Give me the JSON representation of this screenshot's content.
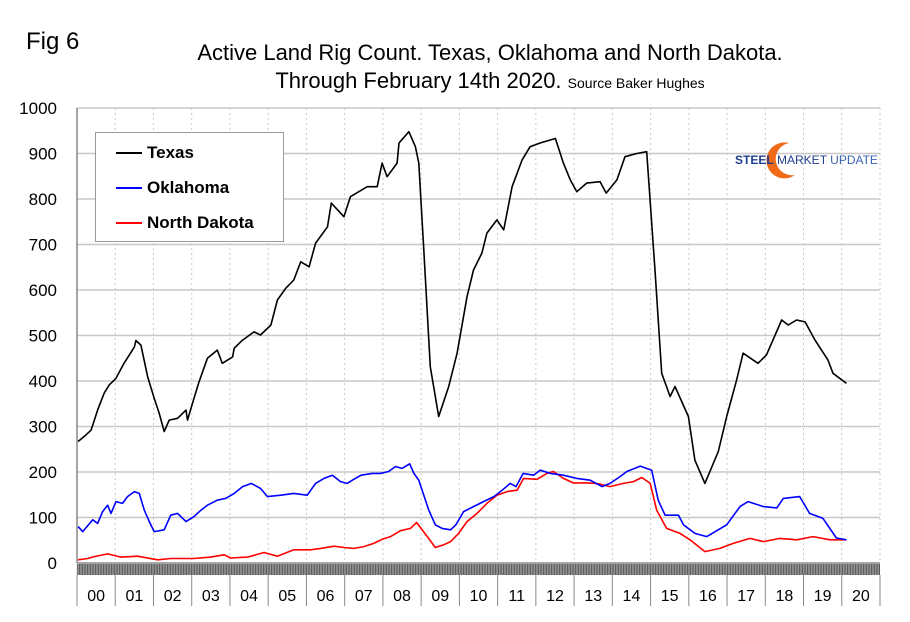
{
  "figure_label": "Fig 6",
  "logo": {
    "word1": "STEEL",
    "word2": "MARKET",
    "word3": "UPDATE",
    "text": "STEEL MARKET UPDATE"
  },
  "chart_data": {
    "type": "line",
    "title": "Active Land Rig Count. Texas, Oklahoma and North Dakota.",
    "subtitle": "Through February 14th  2020.",
    "source": "Source Baker Hughes",
    "xlabel": "",
    "ylabel": "",
    "xlim": [
      2000,
      2021
    ],
    "ylim": [
      0,
      1000
    ],
    "yticks": [
      0,
      100,
      200,
      300,
      400,
      500,
      600,
      700,
      800,
      900,
      1000
    ],
    "ytick_labels": [
      "0",
      "100",
      "200",
      "300",
      "400",
      "500",
      "600",
      "700",
      "800",
      "900",
      "1000"
    ],
    "xtick_labels": [
      "00",
      "01",
      "02",
      "03",
      "04",
      "05",
      "06",
      "07",
      "08",
      "09",
      "10",
      "11",
      "12",
      "13",
      "14",
      "15",
      "16",
      "17",
      "18",
      "19",
      "20"
    ],
    "grid": true,
    "legend_position": "top-left",
    "series": [
      {
        "name": "Texas",
        "color": "#000000",
        "points": [
          [
            2000.03,
            267
          ],
          [
            2000.23,
            281
          ],
          [
            2000.37,
            292
          ],
          [
            2000.54,
            336
          ],
          [
            2000.71,
            373
          ],
          [
            2000.84,
            391
          ],
          [
            2001.02,
            406
          ],
          [
            2001.23,
            439
          ],
          [
            2001.5,
            475
          ],
          [
            2001.54,
            489
          ],
          [
            2001.67,
            479
          ],
          [
            2001.85,
            409
          ],
          [
            2002.02,
            362
          ],
          [
            2002.15,
            329
          ],
          [
            2002.28,
            289
          ],
          [
            2002.41,
            314
          ],
          [
            2002.63,
            318
          ],
          [
            2002.85,
            336
          ],
          [
            2002.89,
            314
          ],
          [
            2003.02,
            351
          ],
          [
            2003.19,
            398
          ],
          [
            2003.41,
            450
          ],
          [
            2003.67,
            468
          ],
          [
            2003.8,
            439
          ],
          [
            2004.07,
            453
          ],
          [
            2004.11,
            472
          ],
          [
            2004.33,
            490
          ],
          [
            2004.63,
            508
          ],
          [
            2004.8,
            501
          ],
          [
            2005.07,
            523
          ],
          [
            2005.24,
            578
          ],
          [
            2005.46,
            604
          ],
          [
            2005.67,
            622
          ],
          [
            2005.85,
            662
          ],
          [
            2006.07,
            651
          ],
          [
            2006.24,
            703
          ],
          [
            2006.55,
            739
          ],
          [
            2006.65,
            791
          ],
          [
            2006.98,
            761
          ],
          [
            2007.15,
            805
          ],
          [
            2007.59,
            827
          ],
          [
            2007.85,
            827
          ],
          [
            2007.98,
            879
          ],
          [
            2008.11,
            849
          ],
          [
            2008.37,
            879
          ],
          [
            2008.42,
            923
          ],
          [
            2008.68,
            948
          ],
          [
            2008.85,
            915
          ],
          [
            2008.94,
            879
          ],
          [
            2009.07,
            688
          ],
          [
            2009.24,
            431
          ],
          [
            2009.46,
            322
          ],
          [
            2009.72,
            388
          ],
          [
            2009.94,
            461
          ],
          [
            2010.2,
            585
          ],
          [
            2010.37,
            644
          ],
          [
            2010.59,
            681
          ],
          [
            2010.72,
            725
          ],
          [
            2010.98,
            754
          ],
          [
            2011.16,
            732
          ],
          [
            2011.38,
            827
          ],
          [
            2011.64,
            886
          ],
          [
            2011.85,
            915
          ],
          [
            2012.11,
            923
          ],
          [
            2012.51,
            933
          ],
          [
            2012.72,
            879
          ],
          [
            2012.9,
            842
          ],
          [
            2013.07,
            816
          ],
          [
            2013.33,
            835
          ],
          [
            2013.68,
            838
          ],
          [
            2013.84,
            813
          ],
          [
            2014.12,
            842
          ],
          [
            2014.33,
            893
          ],
          [
            2014.64,
            900
          ],
          [
            2014.9,
            904
          ],
          [
            2015.12,
            637
          ],
          [
            2015.29,
            417
          ],
          [
            2015.51,
            366
          ],
          [
            2015.64,
            388
          ],
          [
            2015.99,
            322
          ],
          [
            2016.16,
            226
          ],
          [
            2016.42,
            175
          ],
          [
            2016.77,
            245
          ],
          [
            2016.99,
            322
          ],
          [
            2017.25,
            402
          ],
          [
            2017.42,
            461
          ],
          [
            2017.81,
            439
          ],
          [
            2018.03,
            457
          ],
          [
            2018.43,
            534
          ],
          [
            2018.6,
            523
          ],
          [
            2018.82,
            534
          ],
          [
            2019.04,
            530
          ],
          [
            2019.3,
            490
          ],
          [
            2019.64,
            446
          ],
          [
            2019.77,
            417
          ],
          [
            2020.12,
            395
          ]
        ]
      },
      {
        "name": "Oklahoma",
        "color": "#0000ff",
        "points": [
          [
            2000.03,
            80
          ],
          [
            2000.15,
            69
          ],
          [
            2000.41,
            95
          ],
          [
            2000.54,
            87
          ],
          [
            2000.67,
            113
          ],
          [
            2000.8,
            127
          ],
          [
            2000.89,
            109
          ],
          [
            2001.02,
            135
          ],
          [
            2001.19,
            131
          ],
          [
            2001.32,
            146
          ],
          [
            2001.5,
            157
          ],
          [
            2001.63,
            153
          ],
          [
            2001.76,
            116
          ],
          [
            2001.89,
            91
          ],
          [
            2002.02,
            69
          ],
          [
            2002.28,
            73
          ],
          [
            2002.45,
            105
          ],
          [
            2002.63,
            109
          ],
          [
            2002.85,
            91
          ],
          [
            2003.06,
            102
          ],
          [
            2003.24,
            116
          ],
          [
            2003.41,
            127
          ],
          [
            2003.67,
            138
          ],
          [
            2003.89,
            142
          ],
          [
            2004.11,
            153
          ],
          [
            2004.33,
            168
          ],
          [
            2004.56,
            175
          ],
          [
            2004.8,
            164
          ],
          [
            2004.98,
            146
          ],
          [
            2005.33,
            149
          ],
          [
            2005.67,
            153
          ],
          [
            2006.02,
            149
          ],
          [
            2006.24,
            175
          ],
          [
            2006.46,
            186
          ],
          [
            2006.68,
            193
          ],
          [
            2006.89,
            179
          ],
          [
            2007.06,
            175
          ],
          [
            2007.24,
            184
          ],
          [
            2007.43,
            193
          ],
          [
            2007.72,
            197
          ],
          [
            2007.94,
            197
          ],
          [
            2008.15,
            201
          ],
          [
            2008.33,
            212
          ],
          [
            2008.5,
            208
          ],
          [
            2008.7,
            218
          ],
          [
            2008.81,
            197
          ],
          [
            2008.94,
            182
          ],
          [
            2009.07,
            149
          ],
          [
            2009.2,
            116
          ],
          [
            2009.37,
            84
          ],
          [
            2009.55,
            76
          ],
          [
            2009.77,
            73
          ],
          [
            2009.91,
            84
          ],
          [
            2010.11,
            113
          ],
          [
            2010.37,
            124
          ],
          [
            2010.63,
            135
          ],
          [
            2010.9,
            146
          ],
          [
            2011.12,
            160
          ],
          [
            2011.33,
            175
          ],
          [
            2011.48,
            168
          ],
          [
            2011.67,
            197
          ],
          [
            2011.94,
            193
          ],
          [
            2012.11,
            204
          ],
          [
            2012.38,
            197
          ],
          [
            2012.72,
            193
          ],
          [
            2013.07,
            186
          ],
          [
            2013.42,
            182
          ],
          [
            2013.73,
            168
          ],
          [
            2013.94,
            175
          ],
          [
            2014.2,
            190
          ],
          [
            2014.38,
            201
          ],
          [
            2014.73,
            213
          ],
          [
            2015.03,
            204
          ],
          [
            2015.2,
            138
          ],
          [
            2015.38,
            105
          ],
          [
            2015.73,
            105
          ],
          [
            2015.86,
            84
          ],
          [
            2016.16,
            65
          ],
          [
            2016.47,
            58
          ],
          [
            2016.99,
            84
          ],
          [
            2017.34,
            124
          ],
          [
            2017.55,
            135
          ],
          [
            2017.95,
            124
          ],
          [
            2018.3,
            121
          ],
          [
            2018.47,
            142
          ],
          [
            2018.9,
            146
          ],
          [
            2019.16,
            109
          ],
          [
            2019.51,
            98
          ],
          [
            2019.86,
            55
          ],
          [
            2020.12,
            51
          ]
        ]
      },
      {
        "name": "North Dakota",
        "color": "#ff0000",
        "points": [
          [
            2000.03,
            7
          ],
          [
            2000.28,
            10
          ],
          [
            2000.45,
            14
          ],
          [
            2000.8,
            20
          ],
          [
            2001.15,
            13
          ],
          [
            2001.58,
            15
          ],
          [
            2002.11,
            7
          ],
          [
            2002.45,
            10
          ],
          [
            2003.06,
            10
          ],
          [
            2003.5,
            13
          ],
          [
            2003.85,
            18
          ],
          [
            2004.02,
            11
          ],
          [
            2004.46,
            13
          ],
          [
            2004.89,
            23
          ],
          [
            2005.24,
            15
          ],
          [
            2005.67,
            29
          ],
          [
            2006.11,
            29
          ],
          [
            2006.37,
            32
          ],
          [
            2006.72,
            37
          ],
          [
            2006.98,
            34
          ],
          [
            2007.24,
            32
          ],
          [
            2007.5,
            36
          ],
          [
            2007.76,
            43
          ],
          [
            2007.98,
            52
          ],
          [
            2008.2,
            58
          ],
          [
            2008.46,
            71
          ],
          [
            2008.72,
            76
          ],
          [
            2008.88,
            89
          ],
          [
            2008.98,
            78
          ],
          [
            2009.16,
            58
          ],
          [
            2009.37,
            34
          ],
          [
            2009.59,
            40
          ],
          [
            2009.77,
            47
          ],
          [
            2009.98,
            65
          ],
          [
            2010.2,
            91
          ],
          [
            2010.46,
            109
          ],
          [
            2010.72,
            131
          ],
          [
            2010.98,
            149
          ],
          [
            2011.25,
            157
          ],
          [
            2011.51,
            160
          ],
          [
            2011.68,
            186
          ],
          [
            2012.03,
            184
          ],
          [
            2012.29,
            197
          ],
          [
            2012.46,
            201
          ],
          [
            2012.72,
            186
          ],
          [
            2012.98,
            176
          ],
          [
            2013.33,
            176
          ],
          [
            2013.6,
            175
          ],
          [
            2013.94,
            168
          ],
          [
            2014.29,
            175
          ],
          [
            2014.55,
            179
          ],
          [
            2014.77,
            188
          ],
          [
            2014.99,
            175
          ],
          [
            2015.16,
            116
          ],
          [
            2015.42,
            76
          ],
          [
            2015.77,
            65
          ],
          [
            2016.03,
            51
          ],
          [
            2016.42,
            25
          ],
          [
            2016.81,
            32
          ],
          [
            2017.16,
            43
          ],
          [
            2017.6,
            54
          ],
          [
            2017.95,
            47
          ],
          [
            2018.38,
            54
          ],
          [
            2018.82,
            51
          ],
          [
            2019.25,
            58
          ],
          [
            2019.69,
            51
          ],
          [
            2020.12,
            51
          ]
        ]
      }
    ]
  }
}
